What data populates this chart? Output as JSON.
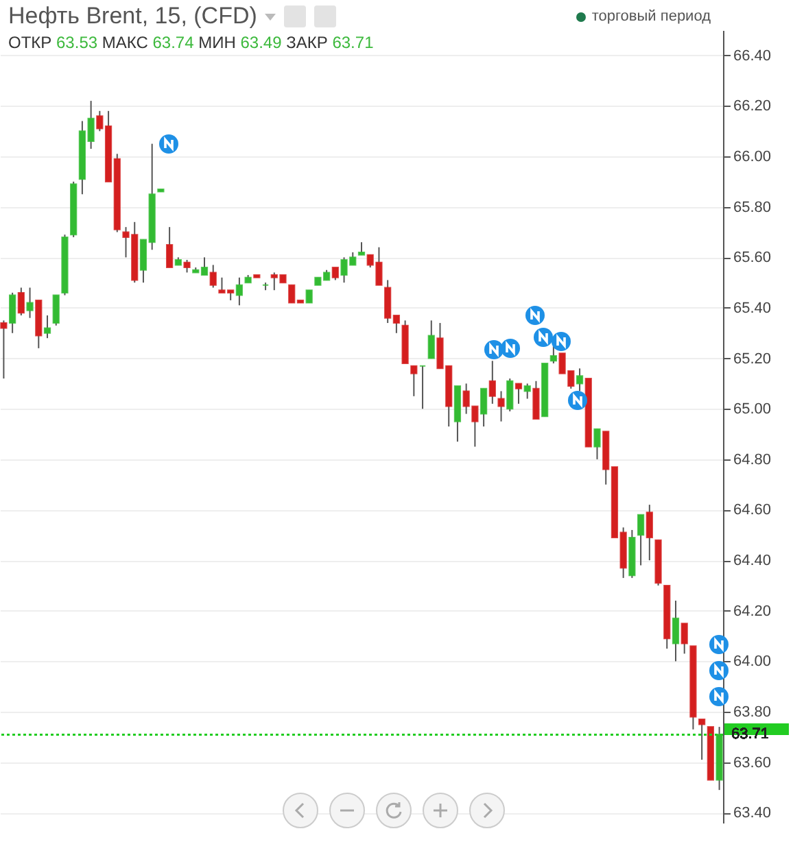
{
  "chart_data": {
    "type": "candlestick",
    "title": "Нефть Brent, 15, (CFD)",
    "subtitle": "ОТКР 63.53 МАКС 63.74 МИН 63.49 ЗАКР 63.71",
    "annotations": [
      "торговый период"
    ],
    "categories": [
      null,
      null,
      null,
      null,
      null,
      null,
      null,
      null,
      null,
      null,
      null,
      null,
      null,
      null,
      null,
      null,
      null,
      null,
      null,
      null,
      null,
      null,
      null,
      null,
      null,
      null,
      null,
      null,
      null,
      null,
      null,
      null,
      null,
      null,
      null,
      null,
      null,
      null,
      null,
      null,
      null,
      null,
      null,
      null,
      null,
      null,
      null,
      null,
      null,
      null,
      null,
      null,
      null,
      null,
      null,
      null,
      null,
      null,
      null,
      null,
      null,
      null,
      null,
      null,
      null,
      null,
      null,
      null,
      null,
      null,
      null,
      null,
      null,
      null,
      null,
      null,
      null,
      null,
      null,
      null,
      null,
      null,
      null
    ],
    "ohlc": [
      [
        65.34,
        65.35,
        65.12,
        65.32
      ],
      [
        65.34,
        65.46,
        65.3,
        65.45
      ],
      [
        65.46,
        65.48,
        65.37,
        65.38
      ],
      [
        65.39,
        65.48,
        65.36,
        65.42
      ],
      [
        65.43,
        65.43,
        65.24,
        65.29
      ],
      [
        65.3,
        65.37,
        65.28,
        65.32
      ],
      [
        65.34,
        65.45,
        65.33,
        65.45
      ],
      [
        65.46,
        65.69,
        65.45,
        65.68
      ],
      [
        65.69,
        65.9,
        65.68,
        65.89
      ],
      [
        65.91,
        66.14,
        65.85,
        66.1
      ],
      [
        66.06,
        66.22,
        66.03,
        66.15
      ],
      [
        66.16,
        66.18,
        66.1,
        66.11
      ],
      [
        66.12,
        66.18,
        65.9,
        65.9
      ],
      [
        65.99,
        66.01,
        65.7,
        65.71
      ],
      [
        65.7,
        65.72,
        65.6,
        65.68
      ],
      [
        65.69,
        65.74,
        65.5,
        65.51
      ],
      [
        65.55,
        65.67,
        65.5,
        65.67
      ],
      [
        65.66,
        66.05,
        65.63,
        65.85
      ],
      [
        65.86,
        65.87,
        65.86,
        65.87
      ],
      [
        65.65,
        65.72,
        65.56,
        65.56
      ],
      [
        65.57,
        65.6,
        65.57,
        65.59
      ],
      [
        65.58,
        65.59,
        65.54,
        65.56
      ],
      [
        65.54,
        65.56,
        65.54,
        65.55
      ],
      [
        65.53,
        65.6,
        65.53,
        65.56
      ],
      [
        65.54,
        65.57,
        65.48,
        65.49
      ],
      [
        65.47,
        65.52,
        65.46,
        65.46
      ],
      [
        65.47,
        65.47,
        65.43,
        65.46
      ],
      [
        65.45,
        65.52,
        65.41,
        65.49
      ],
      [
        65.5,
        65.53,
        65.5,
        65.52
      ],
      [
        65.53,
        65.53,
        65.52,
        65.52
      ],
      [
        65.49,
        65.5,
        65.47,
        65.49
      ],
      [
        65.53,
        65.54,
        65.47,
        65.52
      ],
      [
        65.53,
        65.53,
        65.5,
        65.5
      ],
      [
        65.49,
        65.49,
        65.42,
        65.42
      ],
      [
        65.43,
        65.43,
        65.42,
        65.42
      ],
      [
        65.42,
        65.47,
        65.42,
        65.47
      ],
      [
        65.49,
        65.52,
        65.49,
        65.52
      ],
      [
        65.51,
        65.55,
        65.51,
        65.54
      ],
      [
        65.56,
        65.56,
        65.51,
        65.52
      ],
      [
        65.53,
        65.6,
        65.5,
        65.59
      ],
      [
        65.57,
        65.62,
        65.57,
        65.6
      ],
      [
        65.61,
        65.66,
        65.61,
        65.62
      ],
      [
        65.61,
        65.61,
        65.56,
        65.57
      ],
      [
        65.58,
        65.64,
        65.49,
        65.49
      ],
      [
        65.48,
        65.51,
        65.34,
        65.36
      ],
      [
        65.37,
        65.37,
        65.3,
        65.34
      ],
      [
        65.33,
        65.35,
        65.18,
        65.18
      ],
      [
        65.17,
        65.17,
        65.05,
        65.14
      ],
      [
        65.17,
        65.17,
        65.0,
        65.17
      ],
      [
        65.2,
        65.35,
        65.2,
        65.29
      ],
      [
        65.28,
        65.34,
        65.16,
        65.16
      ],
      [
        65.17,
        65.17,
        64.93,
        65.01
      ],
      [
        64.95,
        65.09,
        64.87,
        65.09
      ],
      [
        65.07,
        65.1,
        64.98,
        65.01
      ],
      [
        65.01,
        65.01,
        64.85,
        64.95
      ],
      [
        64.98,
        65.08,
        64.93,
        65.08
      ],
      [
        65.11,
        65.19,
        65.02,
        65.05
      ],
      [
        65.04,
        65.07,
        64.95,
        65.01
      ],
      [
        65.0,
        65.12,
        64.99,
        65.11
      ],
      [
        65.1,
        65.1,
        65.02,
        65.08
      ],
      [
        65.07,
        65.1,
        65.04,
        65.09
      ],
      [
        65.08,
        65.11,
        64.96,
        64.96
      ],
      [
        64.97,
        65.18,
        64.97,
        65.18
      ],
      [
        65.19,
        65.25,
        65.18,
        65.21
      ],
      [
        65.22,
        65.22,
        65.14,
        65.14
      ],
      [
        65.15,
        65.15,
        65.08,
        65.09
      ],
      [
        65.1,
        65.16,
        65.07,
        65.13
      ],
      [
        65.12,
        65.12,
        64.85,
        64.85
      ],
      [
        64.85,
        64.92,
        64.8,
        64.92
      ],
      [
        64.91,
        64.91,
        64.7,
        64.76
      ],
      [
        64.77,
        64.77,
        64.49,
        64.49
      ],
      [
        64.51,
        64.53,
        64.33,
        64.37
      ],
      [
        64.34,
        64.52,
        64.33,
        64.49
      ],
      [
        64.5,
        64.58,
        64.38,
        64.58
      ],
      [
        64.59,
        64.62,
        64.4,
        64.49
      ],
      [
        64.48,
        64.48,
        64.3,
        64.31
      ],
      [
        64.3,
        64.3,
        64.05,
        64.09
      ],
      [
        64.07,
        64.24,
        64.0,
        64.17
      ],
      [
        64.15,
        64.15,
        64.03,
        64.07
      ],
      [
        64.06,
        64.06,
        63.73,
        63.78
      ],
      [
        63.77,
        63.77,
        63.61,
        63.75
      ],
      [
        63.74,
        63.74,
        63.53,
        63.53
      ],
      [
        63.53,
        63.74,
        63.49,
        63.71
      ]
    ],
    "ylim": [
      63.36,
      66.5
    ],
    "yticks": [
      {
        "value": 63.4,
        "label": "63.40"
      },
      {
        "value": 63.6,
        "label": "63.60"
      },
      {
        "value": 63.8,
        "label": "63.80"
      },
      {
        "value": 64.0,
        "label": "64.00"
      },
      {
        "value": 64.2,
        "label": "64.20"
      },
      {
        "value": 64.4,
        "label": "64.40"
      },
      {
        "value": 64.6,
        "label": "64.60"
      },
      {
        "value": 64.8,
        "label": "64.80"
      },
      {
        "value": 65.0,
        "label": "65.00"
      },
      {
        "value": 65.2,
        "label": "65.20"
      },
      {
        "value": 65.4,
        "label": "65.40"
      },
      {
        "value": 65.6,
        "label": "65.60"
      },
      {
        "value": 65.8,
        "label": "65.80"
      },
      {
        "value": 66.0,
        "label": "66.00"
      },
      {
        "value": 66.2,
        "label": "66.20"
      },
      {
        "value": 66.4,
        "label": "66.40"
      }
    ],
    "grid": "y",
    "tick_labels": "y",
    "legend": false,
    "ref_lines": [
      {
        "axis": "y",
        "value": 63.71,
        "label": "63.71",
        "color": "#22cc22",
        "line_style": "dotted"
      }
    ]
  }
}
